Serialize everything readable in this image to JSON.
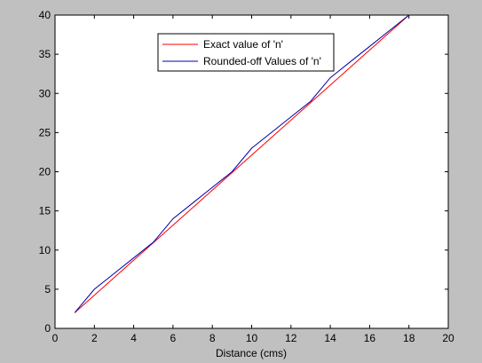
{
  "chart_data": {
    "type": "line",
    "title": "",
    "xlabel": "Distance (cms)",
    "ylabel": "",
    "xlim": [
      0,
      20
    ],
    "ylim": [
      0,
      40
    ],
    "xticks": [
      0,
      2,
      4,
      6,
      8,
      10,
      12,
      14,
      16,
      18,
      20
    ],
    "yticks": [
      0,
      5,
      10,
      15,
      20,
      25,
      30,
      35,
      40
    ],
    "grid": false,
    "legend_position": "top-center",
    "series": [
      {
        "name": "Exact value of 'n'",
        "color": "#ff0000",
        "x": [
          1,
          18
        ],
        "y": [
          2,
          40
        ]
      },
      {
        "name": "Rounded-off Values of 'n'",
        "color": "#0000aa",
        "x": [
          1,
          2,
          3,
          4,
          5,
          6,
          7,
          8,
          9,
          10,
          11,
          12,
          13,
          14,
          15,
          16,
          17,
          18
        ],
        "y": [
          2,
          5,
          7,
          9,
          11,
          14,
          16,
          18,
          20,
          23,
          25,
          27,
          29,
          32,
          34,
          36,
          38,
          40
        ]
      }
    ]
  }
}
